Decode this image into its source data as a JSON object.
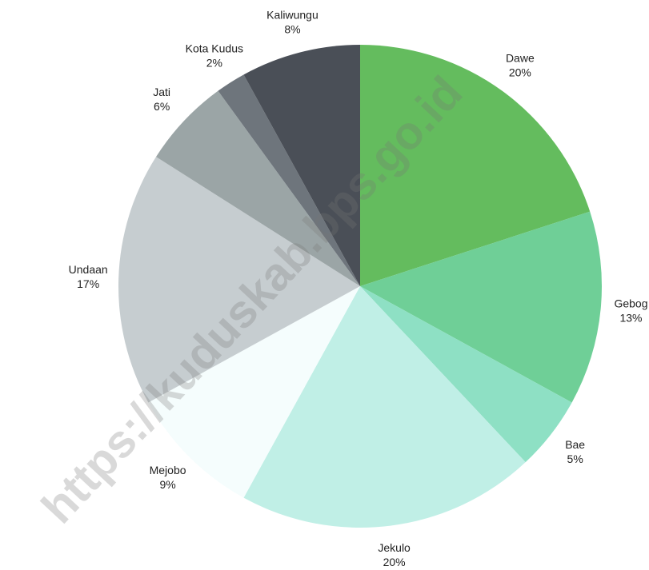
{
  "chart_data": {
    "type": "pie",
    "watermark": "https://kuduskab.bps.go.id",
    "categories": [
      "Dawe",
      "Gebog",
      "Bae",
      "Jekulo",
      "Mejobo",
      "Undaan",
      "Jati",
      "Kota Kudus",
      "Kaliwungu"
    ],
    "values": [
      20,
      13,
      5,
      20,
      9,
      17,
      6,
      2,
      8
    ],
    "value_labels": [
      "20%",
      "13%",
      "5%",
      "20%",
      "9%",
      "17%",
      "6%",
      "2%",
      "8%"
    ],
    "colors": [
      "#64bc5e",
      "#6fcf97",
      "#8ee0c4",
      "#c0efe6",
      "#f5fdfd",
      "#c6cdd0",
      "#9ba5a6",
      "#6e757c",
      "#4a4f57"
    ]
  }
}
